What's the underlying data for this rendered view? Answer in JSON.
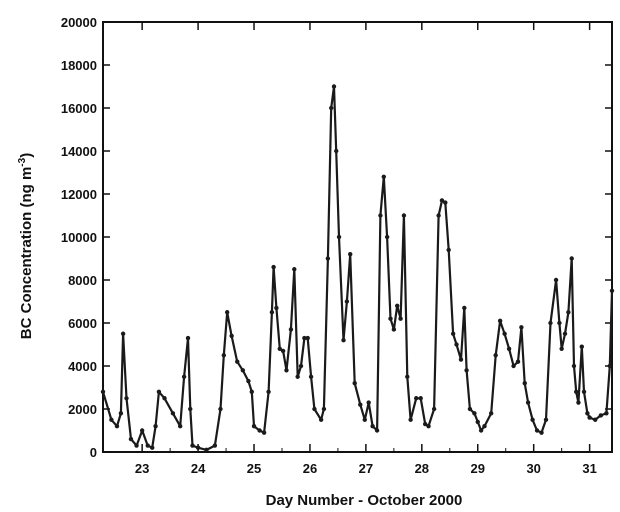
{
  "chart_data": {
    "type": "line",
    "title": "",
    "xlabel": "Day Number - October 2000",
    "ylabel_main": "BC Concentration (ng m",
    "ylabel_sup": "-3",
    "ylabel_close": ")",
    "xlim": [
      22.3,
      31.4
    ],
    "ylim": [
      0,
      20000
    ],
    "x_ticks": [
      23,
      24,
      25,
      26,
      27,
      28,
      29,
      30,
      31
    ],
    "y_ticks": [
      0,
      2000,
      4000,
      6000,
      8000,
      10000,
      12000,
      14000,
      16000,
      18000,
      20000
    ],
    "grid": false,
    "colors": {
      "series": "#1a1a1a",
      "axis": "#111111"
    },
    "series": [
      {
        "x": [
          22.3,
          22.45,
          22.55,
          22.62,
          22.66,
          22.72,
          22.8,
          22.9,
          23.0,
          23.1,
          23.18,
          23.24,
          23.3,
          23.4,
          23.55,
          23.68,
          23.75,
          23.82,
          23.86,
          23.9,
          24.0,
          24.15,
          24.3,
          24.4,
          24.46,
          24.52,
          24.6,
          24.7,
          24.8,
          24.9,
          24.96,
          25.0,
          25.1,
          25.18,
          25.26,
          25.32,
          25.35,
          25.4,
          25.46,
          25.52,
          25.58,
          25.66,
          25.72,
          25.78,
          25.84,
          25.9,
          25.96,
          26.02,
          26.08,
          26.2,
          26.25,
          26.32,
          26.38,
          26.43,
          26.47,
          26.52,
          26.6,
          26.66,
          26.72,
          26.8,
          26.9,
          26.98,
          27.05,
          27.12,
          27.2,
          27.26,
          27.32,
          27.38,
          27.44,
          27.5,
          27.56,
          27.62,
          27.68,
          27.74,
          27.8,
          27.9,
          27.98,
          28.06,
          28.12,
          28.22,
          28.3,
          28.36,
          28.42,
          28.48,
          28.56,
          28.62,
          28.7,
          28.76,
          28.8,
          28.86,
          28.94,
          29.0,
          29.06,
          29.12,
          29.24,
          29.32,
          29.4,
          29.48,
          29.56,
          29.64,
          29.72,
          29.78,
          29.84,
          29.9,
          29.98,
          30.06,
          30.14,
          30.22,
          30.3,
          30.4,
          30.46,
          30.5,
          30.56,
          30.62,
          30.68,
          30.72,
          30.76,
          30.8,
          30.86,
          30.9,
          30.96,
          31.0,
          31.1,
          31.2,
          31.3,
          31.36,
          31.4
        ],
        "y": [
          2800,
          1500,
          1200,
          1800,
          5500,
          2500,
          600,
          300,
          1000,
          300,
          200,
          1200,
          2800,
          2500,
          1800,
          1200,
          3500,
          5300,
          2000,
          300,
          200,
          100,
          300,
          2000,
          4500,
          6500,
          5400,
          4200,
          3800,
          3300,
          2800,
          1200,
          1000,
          900,
          2800,
          6500,
          8600,
          6700,
          4800,
          4700,
          3800,
          5700,
          8500,
          3500,
          4000,
          5300,
          5300,
          3500,
          2000,
          1500,
          2000,
          9000,
          16000,
          17000,
          14000,
          10000,
          5200,
          7000,
          9200,
          3200,
          2200,
          1500,
          2300,
          1200,
          1000,
          11000,
          12800,
          10000,
          6200,
          5700,
          6800,
          6200,
          11000,
          3500,
          1500,
          2500,
          2500,
          1300,
          1200,
          2000,
          11000,
          11700,
          11600,
          9400,
          5500,
          5000,
          4300,
          6700,
          3800,
          2000,
          1800,
          1400,
          1000,
          1200,
          1800,
          4500,
          6100,
          5500,
          4800,
          4000,
          4200,
          5800,
          3200,
          2300,
          1500,
          1000,
          900,
          1500,
          6000,
          8000,
          6000,
          4800,
          5500,
          6500,
          9000,
          4000,
          2800,
          2300,
          4900,
          2800,
          1800,
          1600,
          1500,
          1700,
          1800,
          4000,
          7500
        ]
      }
    ]
  }
}
